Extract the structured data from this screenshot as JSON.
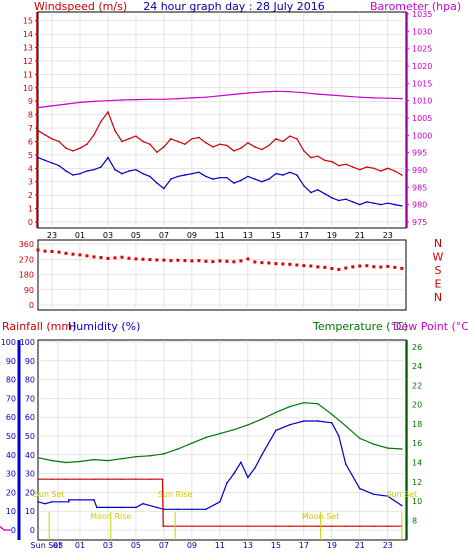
{
  "chart_data": [
    {
      "type": "line",
      "title": "24 hour graph day : 28 July 2016",
      "left_axis_label": "Windspeed (m/s)",
      "right_axis_label": "Barometer (hpa)",
      "left_ticks": [
        "0",
        "1",
        "2",
        "3",
        "4",
        "5",
        "6",
        "7",
        "8",
        "9",
        "10",
        "11",
        "12",
        "13",
        "14",
        "15"
      ],
      "right_ticks": [
        "975",
        "980",
        "985",
        "990",
        "995",
        "1000",
        "1005",
        "1010",
        "1015",
        "1020",
        "1025",
        "1030",
        "1035"
      ],
      "ylim_left": [
        0,
        15.5
      ],
      "ylim_right": [
        975,
        1035
      ],
      "x_ticks": [
        "23",
        "01",
        "03",
        "05",
        "07",
        "09",
        "11",
        "13",
        "15",
        "17",
        "19",
        "21",
        "23"
      ],
      "grid": true,
      "colors": {
        "gust": "#cc0000",
        "speed": "#0000cc",
        "barometer": "#cc00cc",
        "left_axis": "#cc0000",
        "right_axis": "#cc00cc",
        "title": "#0000aa"
      },
      "series": [
        {
          "key": "barometer",
          "x": [
            22,
            23,
            0,
            1,
            2,
            3,
            4,
            5,
            6,
            7,
            8,
            9,
            10,
            11,
            12,
            13,
            14,
            15,
            16,
            17,
            18,
            19,
            20,
            21,
            22,
            23,
            24
          ],
          "values": [
            1008,
            1008.5,
            1009,
            1009.5,
            1009.8,
            1010,
            1010.2,
            1010.3,
            1010.4,
            1010.4,
            1010.6,
            1010.8,
            1011,
            1011.4,
            1011.8,
            1012.2,
            1012.5,
            1012.7,
            1012.6,
            1012.3,
            1011.9,
            1011.6,
            1011.3,
            1011,
            1010.8,
            1010.7,
            1010.6
          ]
        },
        {
          "key": "gust",
          "x": [
            22,
            22.5,
            23,
            23.5,
            0,
            0.5,
            1,
            1.5,
            2,
            2.5,
            3,
            3.5,
            4,
            4.5,
            5,
            5.5,
            6,
            6.5,
            7,
            7.5,
            8,
            8.5,
            9,
            9.5,
            10,
            10.5,
            11,
            11.5,
            12,
            12.5,
            13,
            13.5,
            14,
            14.5,
            15,
            15.5,
            16,
            16.5,
            17,
            17.5,
            18,
            18.5,
            19,
            19.5,
            20,
            20.5,
            21,
            21.5,
            22,
            22.5,
            23,
            23.5,
            24
          ],
          "values": [
            6.8,
            6.5,
            6.2,
            6.0,
            5.5,
            5.3,
            5.5,
            5.8,
            6.5,
            7.5,
            8.2,
            6.8,
            6.0,
            6.2,
            6.4,
            6.0,
            5.8,
            5.2,
            5.6,
            6.2,
            6.0,
            5.8,
            6.2,
            6.3,
            5.9,
            5.6,
            5.8,
            5.7,
            5.3,
            5.5,
            5.9,
            5.6,
            5.4,
            5.7,
            6.2,
            6.0,
            6.4,
            6.2,
            5.3,
            4.8,
            4.9,
            4.6,
            4.5,
            4.2,
            4.3,
            4.1,
            3.9,
            4.1,
            4.0,
            3.8,
            4.0,
            3.8,
            3.5
          ]
        },
        {
          "key": "speed",
          "x": [
            22,
            22.5,
            23,
            23.5,
            0,
            0.5,
            1,
            1.5,
            2,
            2.5,
            3,
            3.5,
            4,
            4.5,
            5,
            5.5,
            6,
            6.5,
            7,
            7.5,
            8,
            8.5,
            9,
            9.5,
            10,
            10.5,
            11,
            11.5,
            12,
            12.5,
            13,
            13.5,
            14,
            14.5,
            15,
            15.5,
            16,
            16.5,
            17,
            17.5,
            18,
            18.5,
            19,
            19.5,
            20,
            20.5,
            21,
            21.5,
            22,
            22.5,
            23,
            23.5,
            24
          ],
          "values": [
            4.8,
            4.6,
            4.4,
            4.2,
            3.8,
            3.5,
            3.6,
            3.8,
            3.9,
            4.1,
            4.8,
            3.9,
            3.6,
            3.8,
            3.9,
            3.6,
            3.4,
            2.9,
            2.5,
            3.2,
            3.4,
            3.5,
            3.6,
            3.7,
            3.4,
            3.2,
            3.3,
            3.3,
            2.9,
            3.1,
            3.4,
            3.2,
            3.0,
            3.2,
            3.6,
            3.5,
            3.7,
            3.5,
            2.7,
            2.2,
            2.4,
            2.1,
            1.8,
            1.6,
            1.7,
            1.5,
            1.3,
            1.5,
            1.4,
            1.3,
            1.4,
            1.3,
            1.2
          ]
        }
      ]
    },
    {
      "type": "scatter",
      "y_ticks": [
        "360",
        "270",
        "180",
        "90",
        "0"
      ],
      "ylim": [
        0,
        360
      ],
      "x_ticks": [
        "23",
        "01",
        "03",
        "05",
        "07",
        "09",
        "11",
        "13",
        "15",
        "17",
        "19",
        "21",
        "23"
      ],
      "direction_labels": [
        "N",
        "W",
        "S",
        "E",
        "N"
      ],
      "colors": {
        "points": "#dd0000",
        "direction_labels": "#cc0000"
      },
      "series": [
        {
          "key": "wind_direction",
          "x": [
            22,
            22.5,
            23,
            23.5,
            0,
            0.5,
            1,
            1.5,
            2,
            2.5,
            3,
            3.5,
            4,
            4.5,
            5,
            5.5,
            6,
            6.5,
            7,
            7.5,
            8,
            8.5,
            9,
            9.5,
            10,
            10.5,
            11,
            11.5,
            12,
            12.5,
            13,
            13.5,
            14,
            14.5,
            15,
            15.5,
            16,
            16.5,
            17,
            17.5,
            18,
            18.5,
            19,
            19.5,
            20,
            20.5,
            21,
            21.5,
            22,
            22.5,
            23,
            23.5,
            24
          ],
          "values": [
            325,
            318,
            316,
            312,
            305,
            300,
            296,
            290,
            284,
            280,
            275,
            278,
            282,
            276,
            272,
            270,
            268,
            266,
            265,
            262,
            264,
            262,
            260,
            262,
            258,
            256,
            260,
            258,
            255,
            260,
            272,
            254,
            250,
            248,
            244,
            242,
            240,
            236,
            232,
            230,
            225,
            222,
            215,
            210,
            218,
            225,
            230,
            232,
            226,
            224,
            228,
            222,
            216
          ]
        }
      ]
    },
    {
      "type": "line",
      "left_axis_label_1": "Rainfall (mm)",
      "left_axis_label_2": "Humidity (%)",
      "right_axis_label_1": "Temperature (°C)",
      "right_axis_label_2": "Dew Point (°C)",
      "left_ticks": [
        "0",
        "10",
        "20",
        "30",
        "40",
        "50",
        "60",
        "70",
        "80",
        "90",
        "100"
      ],
      "right_ticks": [
        "8",
        "10",
        "12",
        "14",
        "16",
        "18",
        "20",
        "22",
        "24",
        "26"
      ],
      "ylim_left": [
        0,
        100
      ],
      "ylim_right": [
        7,
        26
      ],
      "x_ticks": [
        "Sun Set",
        "03",
        "01",
        "03",
        "05",
        "07",
        "09",
        "11",
        "13",
        "15",
        "17",
        "19",
        "21",
        "23"
      ],
      "annotations": {
        "sun_set_1": "Sun Set",
        "moon_rise": "Moon Rise",
        "sun_rise": "Sun Rise",
        "moon_set": "Moon Set",
        "sun_set_2": "Sun Set"
      },
      "grid": true,
      "colors": {
        "rainfall": "#cc0000",
        "humidity": "#0000cc",
        "temperature": "#007700",
        "sunshine": "#cc00cc",
        "events": "#cccc00",
        "rainfall_label": "#cc0000",
        "humidity_label": "#0000cc",
        "temperature_label": "#007700",
        "dewpoint_label": "#cc00cc"
      },
      "series": [
        {
          "key": "temperature",
          "x": [
            22,
            23,
            0,
            1,
            2,
            3,
            4,
            5,
            6,
            7,
            8,
            9,
            10,
            11,
            12,
            13,
            14,
            15,
            16,
            17,
            18,
            19,
            20,
            21,
            22,
            23,
            24
          ],
          "values": [
            14.5,
            14.2,
            14.0,
            14.1,
            14.3,
            14.2,
            14.4,
            14.6,
            14.7,
            14.9,
            15.4,
            16.0,
            16.6,
            17.0,
            17.4,
            17.9,
            18.5,
            19.2,
            19.8,
            20.2,
            20.1,
            19.0,
            17.8,
            16.5,
            15.9,
            15.5,
            15.4
          ]
        },
        {
          "key": "humidity",
          "x": [
            22,
            22.5,
            23,
            24.2,
            0.2,
            1,
            2,
            2.2,
            3,
            4,
            5,
            5.5,
            6.5,
            7,
            8,
            9,
            10,
            11,
            11.5,
            12,
            12.5,
            13,
            13.5,
            14,
            15,
            16,
            17,
            18,
            19,
            19.5,
            20,
            21,
            22,
            23,
            24
          ],
          "values": [
            15,
            14,
            15,
            15,
            16,
            16,
            16,
            12,
            12,
            12,
            12,
            14,
            12,
            11,
            11,
            11,
            11,
            15,
            25,
            30,
            36,
            28,
            33,
            40,
            53,
            56,
            58,
            58,
            57,
            50,
            35,
            22,
            19,
            18,
            13
          ]
        },
        {
          "key": "rainfall",
          "x": [
            22,
            23,
            0,
            1,
            2,
            3,
            4,
            5,
            6,
            6.9,
            6.95,
            7,
            15,
            16,
            17,
            18,
            19,
            20,
            21,
            22,
            23,
            24
          ],
          "values": [
            27,
            27,
            27,
            27,
            27,
            27,
            27,
            27,
            27,
            27,
            2,
            2,
            2,
            2,
            2,
            2,
            2,
            2,
            2,
            2,
            2,
            2
          ]
        },
        {
          "key": "sunshine",
          "x": [
            15.2,
            16,
            16.5,
            17,
            17.5,
            18,
            18.5,
            19,
            19.4,
            19.6,
            20
          ],
          "values": [
            2,
            3,
            8,
            12,
            15,
            13,
            10,
            4,
            1,
            0,
            0
          ]
        }
      ]
    }
  ]
}
